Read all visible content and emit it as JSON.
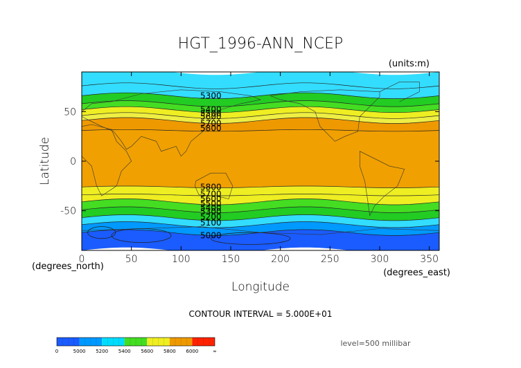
{
  "chart_data": {
    "type": "contour-map",
    "title": "HGT_1996-ANN_NCEP",
    "units_label": "(units:m)",
    "xlabel": "Longitude",
    "ylabel": "Latitude",
    "x_unit_label": "(degrees_east)",
    "y_unit_label": "(degrees_north)",
    "xlim": [
      0,
      360
    ],
    "ylim": [
      -90,
      90
    ],
    "x_ticks": [
      0,
      50,
      100,
      150,
      200,
      250,
      300,
      350
    ],
    "y_ticks": [
      50,
      0,
      -50
    ],
    "contour_interval_text": "CONTOUR INTERVAL = 5.000E+01",
    "level_text": "level=500 millibar",
    "colorbar": {
      "labels": [
        "0",
        "5000",
        "5200",
        "5400",
        "5600",
        "5800",
        "6000",
        "∞"
      ],
      "colors": [
        "#1a5cff",
        "#0099ff",
        "#00ddff",
        "#44dd22",
        "#eeee22",
        "#ee9900",
        "#ff2200"
      ]
    },
    "bands": [
      {
        "from": 90,
        "to": 76,
        "color": "#33ddff"
      },
      {
        "from": 76,
        "to": 66,
        "color": "#33ddff"
      },
      {
        "from": 66,
        "to": 58,
        "color": "#22cc22"
      },
      {
        "from": 58,
        "to": 52,
        "color": "#44dd22"
      },
      {
        "from": 52,
        "to": 46,
        "color": "#eeee22"
      },
      {
        "from": 46,
        "to": 41,
        "color": "#eeee44"
      },
      {
        "from": 41,
        "to": 31,
        "color": "#ee9900"
      },
      {
        "from": 31,
        "to": -26,
        "color": "#f0a000"
      },
      {
        "from": -26,
        "to": -34,
        "color": "#eeee22"
      },
      {
        "from": -34,
        "to": -41,
        "color": "#eeee22"
      },
      {
        "from": -41,
        "to": -49,
        "color": "#44dd22"
      },
      {
        "from": -49,
        "to": -57,
        "color": "#22cc22"
      },
      {
        "from": -57,
        "to": -64,
        "color": "#33ddff"
      },
      {
        "from": -64,
        "to": -72,
        "color": "#0099ff"
      },
      {
        "from": -72,
        "to": -90,
        "color": "#1a5cff"
      }
    ],
    "contour_labels": [
      {
        "text": "5300",
        "lon": 130,
        "lat": 66
      },
      {
        "text": "5400",
        "lon": 130,
        "lat": 52
      },
      {
        "text": "5500",
        "lon": 130,
        "lat": 48
      },
      {
        "text": "5600",
        "lon": 130,
        "lat": 45
      },
      {
        "text": "5700",
        "lon": 130,
        "lat": 38
      },
      {
        "text": "5800",
        "lon": 130,
        "lat": 33
      },
      {
        "text": "5800",
        "lon": 130,
        "lat": -26
      },
      {
        "text": "5700",
        "lon": 130,
        "lat": -33
      },
      {
        "text": "5600",
        "lon": 130,
        "lat": -38
      },
      {
        "text": "5500",
        "lon": 130,
        "lat": -43
      },
      {
        "text": "5400",
        "lon": 130,
        "lat": -47
      },
      {
        "text": "5300",
        "lon": 130,
        "lat": -51
      },
      {
        "text": "5200",
        "lon": 130,
        "lat": -56
      },
      {
        "text": "5100",
        "lon": 130,
        "lat": -62
      },
      {
        "text": "5000",
        "lon": 130,
        "lat": -75
      }
    ]
  }
}
